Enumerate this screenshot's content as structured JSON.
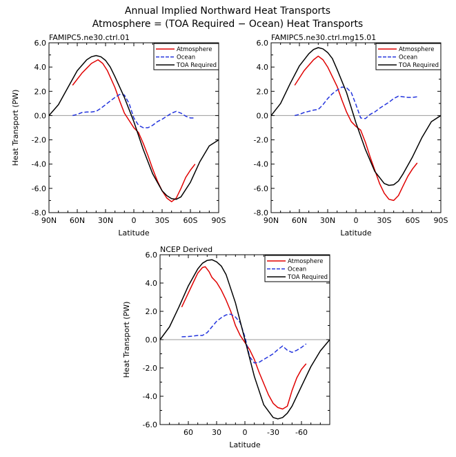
{
  "figure": {
    "title_line1": "Annual Implied Northward Heat Transports",
    "title_line2": "Atmosphere = (TOA Required − Ocean) Heat Transports"
  },
  "colors": {
    "atmosphere": "#e00000",
    "ocean": "#2233dd",
    "toa": "#000000",
    "zero_line": "#999999"
  },
  "chart_data": [
    {
      "type": "line",
      "subtitle": "FAMIPC5.ne30.ctrl.01",
      "xlabel": "Latitude",
      "ylabel": "Heat Transport (PW)",
      "xlim": [
        90,
        -90
      ],
      "ylim": [
        -8,
        6
      ],
      "x_tick_values": [
        90,
        60,
        30,
        0,
        -30,
        -60,
        -90
      ],
      "x_tick_labels": [
        "90N",
        "60N",
        "30N",
        "0",
        "30S",
        "60S",
        "90S"
      ],
      "y_tick_values": [
        6,
        4,
        2,
        0,
        -2,
        -4,
        -6,
        -8
      ],
      "y_tick_labels": [
        "6.0",
        "4.0",
        "2.0",
        "0.0",
        "-2.0",
        "-4.0",
        "-6.0",
        "-8.0"
      ],
      "legend": [
        "Atmosphere",
        "Ocean",
        "TOA Required"
      ],
      "series": [
        {
          "name": "Atmosphere",
          "style": "solid-red",
          "x": [
            65,
            55,
            45,
            38,
            33,
            28,
            20,
            15,
            10,
            5,
            0,
            -5,
            -10,
            -15,
            -20,
            -25,
            -30,
            -35,
            -40,
            -45,
            -50,
            -55,
            -60,
            -65
          ],
          "y": [
            2.5,
            3.5,
            4.3,
            4.6,
            4.3,
            3.7,
            2.3,
            1.2,
            0.2,
            -0.4,
            -1.0,
            -1.4,
            -2.3,
            -3.3,
            -4.4,
            -5.4,
            -6.2,
            -6.8,
            -7.1,
            -6.8,
            -6.0,
            -5.1,
            -4.5,
            -4.0
          ]
        },
        {
          "name": "Ocean",
          "style": "dashed-blue",
          "x": [
            65,
            60,
            55,
            50,
            45,
            40,
            35,
            30,
            25,
            20,
            15,
            10,
            5,
            0,
            -5,
            -10,
            -15,
            -20,
            -25,
            -30,
            -35,
            -40,
            -45,
            -50,
            -55,
            -60,
            -65
          ],
          "y": [
            0.0,
            0.1,
            0.25,
            0.3,
            0.3,
            0.35,
            0.6,
            0.9,
            1.2,
            1.5,
            1.75,
            1.7,
            1.0,
            -0.2,
            -0.8,
            -1.0,
            -1.0,
            -0.8,
            -0.5,
            -0.3,
            -0.05,
            0.2,
            0.35,
            0.2,
            -0.05,
            -0.2,
            -0.2
          ]
        },
        {
          "name": "TOA Required",
          "style": "solid-black",
          "x": [
            90,
            80,
            70,
            60,
            50,
            45,
            40,
            35,
            30,
            25,
            20,
            10,
            0,
            -10,
            -20,
            -30,
            -35,
            -40,
            -45,
            -50,
            -60,
            -70,
            -80,
            -90
          ],
          "y": [
            0.0,
            0.9,
            2.3,
            3.7,
            4.6,
            4.85,
            4.95,
            4.85,
            4.55,
            4.0,
            3.2,
            1.5,
            -0.5,
            -2.8,
            -4.8,
            -6.2,
            -6.6,
            -6.85,
            -6.9,
            -6.7,
            -5.5,
            -3.8,
            -2.5,
            -2.0
          ]
        }
      ]
    },
    {
      "type": "line",
      "subtitle": "FAMIPC5.ne30.ctrl.mg15.01",
      "xlabel": "Latitude",
      "ylabel": "",
      "xlim": [
        90,
        -90
      ],
      "ylim": [
        -8,
        6
      ],
      "x_tick_values": [
        90,
        60,
        30,
        0,
        -30,
        -60,
        -90
      ],
      "x_tick_labels": [
        "90N",
        "60N",
        "30N",
        "0",
        "30S",
        "60S",
        "90S"
      ],
      "y_tick_values": [
        6,
        4,
        2,
        0,
        -2,
        -4,
        -6,
        -8
      ],
      "y_tick_labels": [
        "6.0",
        "4.0",
        "2.0",
        "0.0",
        "-2.0",
        "-4.0",
        "-6.0",
        "-8.0"
      ],
      "legend": [
        "Atmosphere",
        "Ocean",
        "TOA Required"
      ],
      "series": [
        {
          "name": "Atmosphere",
          "style": "solid-red",
          "x": [
            65,
            55,
            45,
            40,
            35,
            30,
            20,
            15,
            10,
            5,
            0,
            -5,
            -10,
            -15,
            -20,
            -25,
            -30,
            -35,
            -40,
            -45,
            -50,
            -55,
            -60,
            -65
          ],
          "y": [
            2.5,
            3.7,
            4.6,
            4.9,
            4.6,
            4.0,
            2.4,
            1.3,
            0.3,
            -0.5,
            -0.9,
            -1.2,
            -2.2,
            -3.4,
            -4.5,
            -5.6,
            -6.4,
            -6.9,
            -7.0,
            -6.6,
            -5.8,
            -5.0,
            -4.4,
            -3.9
          ]
        },
        {
          "name": "Ocean",
          "style": "dashed-blue",
          "x": [
            65,
            60,
            55,
            50,
            45,
            40,
            35,
            30,
            25,
            20,
            15,
            10,
            5,
            0,
            -5,
            -10,
            -15,
            -20,
            -25,
            -30,
            -35,
            -40,
            -45,
            -50,
            -55,
            -60,
            -65
          ],
          "y": [
            0.0,
            0.1,
            0.25,
            0.35,
            0.45,
            0.5,
            0.9,
            1.4,
            1.8,
            2.1,
            2.35,
            2.3,
            1.9,
            0.9,
            -0.2,
            -0.25,
            0.1,
            0.3,
            0.6,
            0.85,
            1.1,
            1.4,
            1.6,
            1.55,
            1.5,
            1.5,
            1.55
          ]
        },
        {
          "name": "TOA Required",
          "style": "solid-black",
          "x": [
            90,
            80,
            70,
            60,
            50,
            45,
            40,
            35,
            30,
            25,
            20,
            10,
            0,
            -10,
            -20,
            -30,
            -35,
            -40,
            -45,
            -50,
            -60,
            -70,
            -80,
            -90
          ],
          "y": [
            0.0,
            1.0,
            2.6,
            4.1,
            5.1,
            5.45,
            5.6,
            5.5,
            5.2,
            4.7,
            3.8,
            1.9,
            -0.6,
            -2.8,
            -4.6,
            -5.6,
            -5.75,
            -5.7,
            -5.4,
            -4.8,
            -3.4,
            -1.8,
            -0.5,
            0.0
          ]
        }
      ]
    },
    {
      "type": "line",
      "subtitle": "NCEP Derived",
      "xlabel": "Latitude",
      "ylabel": "Heat Transport (PW)",
      "xlim": [
        90,
        -90
      ],
      "ylim": [
        -6,
        6
      ],
      "x_tick_values": [
        60,
        30,
        0,
        -30,
        -60
      ],
      "x_tick_labels": [
        "60",
        "30",
        "0",
        "-30",
        "-60"
      ],
      "y_tick_values": [
        6,
        4,
        2,
        0,
        -2,
        -4,
        -6
      ],
      "y_tick_labels": [
        "6.0",
        "4.0",
        "2.0",
        "0.0",
        "-2.0",
        "-4.0",
        "-6.0"
      ],
      "legend": [
        "Atmosphere",
        "Ocean",
        "TOA Required"
      ],
      "series": [
        {
          "name": "Atmosphere",
          "style": "solid-red",
          "x": [
            67,
            60,
            55,
            50,
            45,
            42,
            38,
            35,
            30,
            25,
            20,
            15,
            10,
            5,
            0,
            -5,
            -10,
            -15,
            -20,
            -25,
            -30,
            -35,
            -40,
            -45,
            -50,
            -55,
            -60,
            -65
          ],
          "y": [
            2.3,
            3.3,
            4.0,
            4.7,
            5.1,
            5.15,
            4.8,
            4.4,
            4.05,
            3.5,
            2.8,
            2.0,
            1.0,
            0.3,
            -0.2,
            -0.7,
            -1.4,
            -2.3,
            -3.1,
            -3.9,
            -4.5,
            -4.8,
            -4.9,
            -4.7,
            -3.6,
            -2.7,
            -2.1,
            -1.7
          ]
        },
        {
          "name": "Ocean",
          "style": "dashed-blue",
          "x": [
            67,
            60,
            55,
            50,
            45,
            40,
            35,
            30,
            25,
            20,
            15,
            10,
            5,
            0,
            -5,
            -10,
            -15,
            -20,
            -25,
            -30,
            -35,
            -40,
            -45,
            -50,
            -55,
            -60,
            -65
          ],
          "y": [
            0.2,
            0.22,
            0.25,
            0.3,
            0.3,
            0.5,
            0.9,
            1.3,
            1.55,
            1.75,
            1.8,
            1.6,
            1.2,
            0.2,
            -1.2,
            -1.65,
            -1.6,
            -1.4,
            -1.2,
            -1.0,
            -0.7,
            -0.45,
            -0.75,
            -0.9,
            -0.75,
            -0.55,
            -0.3
          ]
        },
        {
          "name": "TOA Required",
          "style": "solid-black",
          "x": [
            90,
            80,
            70,
            60,
            50,
            45,
            40,
            35,
            30,
            25,
            20,
            10,
            0,
            -10,
            -20,
            -30,
            -35,
            -40,
            -45,
            -50,
            -60,
            -70,
            -80,
            -90
          ],
          "y": [
            0.0,
            0.9,
            2.3,
            3.8,
            5.0,
            5.4,
            5.6,
            5.65,
            5.5,
            5.2,
            4.6,
            2.6,
            0.0,
            -2.6,
            -4.6,
            -5.5,
            -5.6,
            -5.5,
            -5.2,
            -4.7,
            -3.3,
            -1.9,
            -0.8,
            0.0
          ]
        }
      ]
    }
  ]
}
